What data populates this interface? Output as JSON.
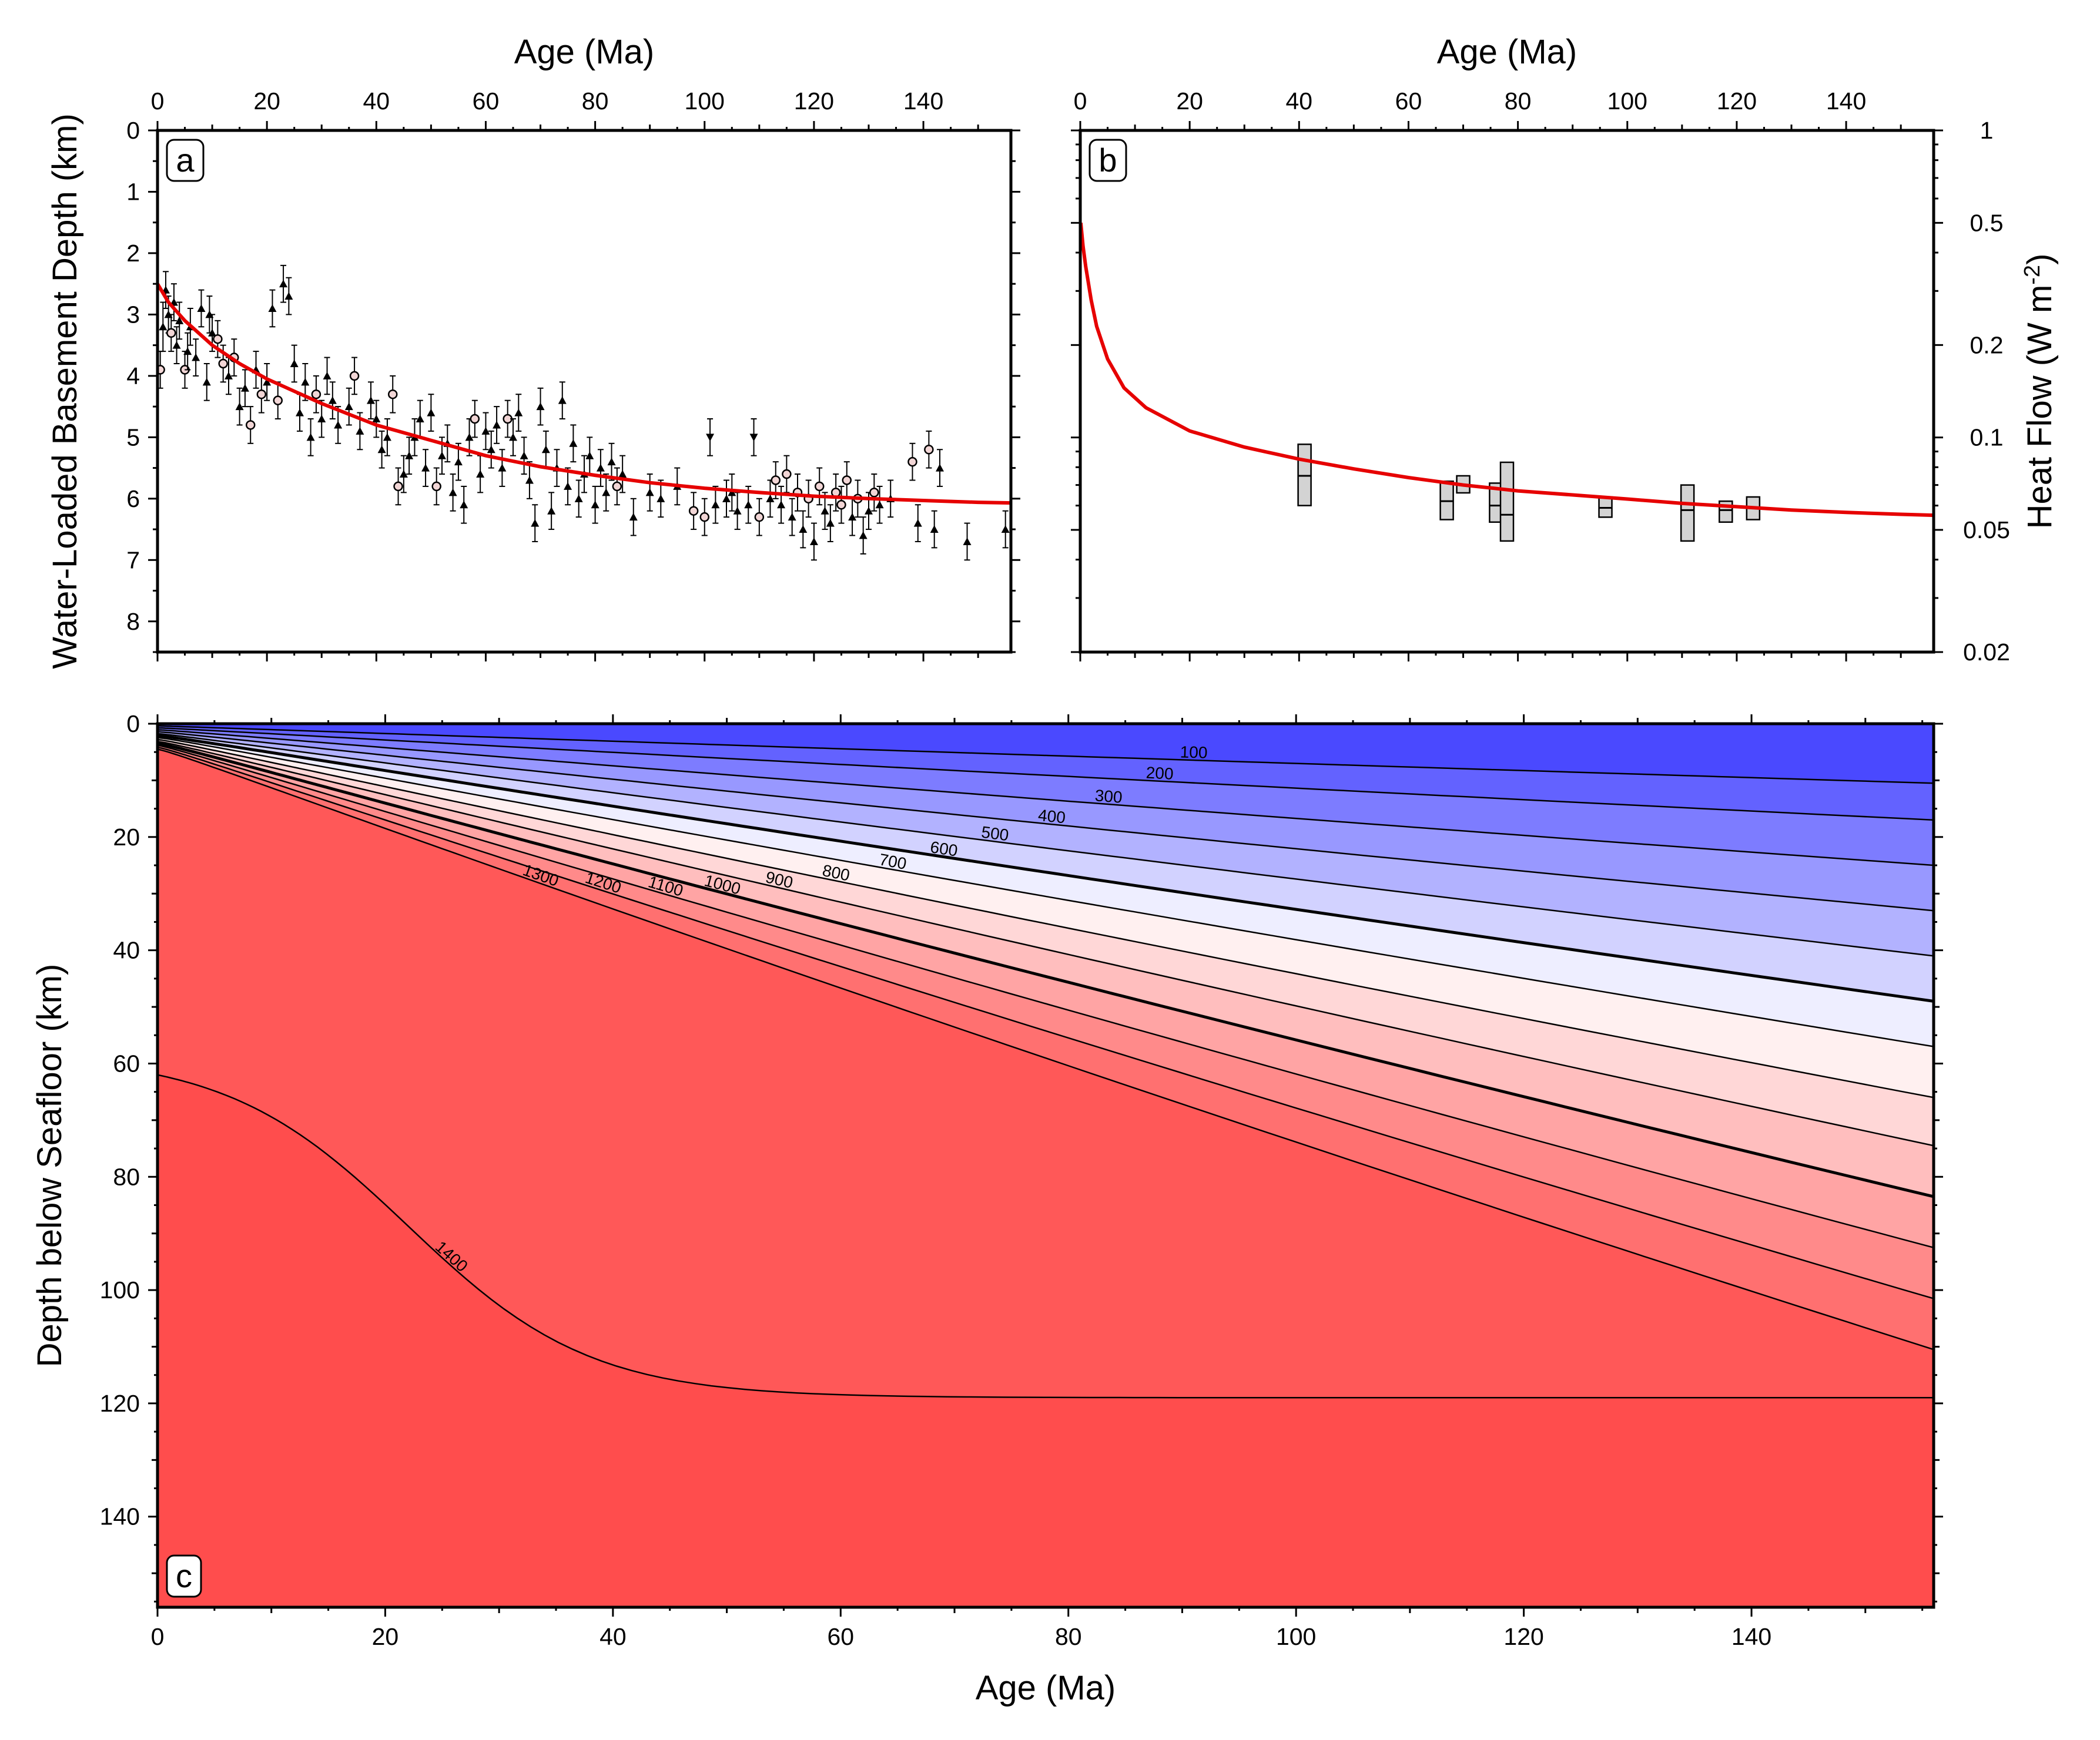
{
  "chart_data": [
    {
      "panel": "a",
      "type": "scatter",
      "panel_label": "a",
      "xlabel": "Age (Ma)",
      "ylabel": "Water-Loaded Basement Depth (km)",
      "xlim": [
        0,
        156
      ],
      "ylim": [
        0,
        8.5
      ],
      "y_inverted": true,
      "x_axis_side": "top",
      "x_ticks": [
        0,
        20,
        40,
        60,
        80,
        100,
        120,
        140
      ],
      "y_ticks": [
        0,
        1,
        2,
        3,
        4,
        5,
        6,
        7,
        8
      ],
      "grid": false,
      "model_curve": {
        "color": "#e60000",
        "x": [
          0,
          2,
          5,
          10,
          15,
          20,
          30,
          40,
          50,
          60,
          70,
          80,
          90,
          100,
          110,
          120,
          130,
          140,
          150,
          156
        ],
        "y": [
          2.5,
          2.8,
          3.1,
          3.5,
          3.8,
          4.05,
          4.45,
          4.8,
          5.05,
          5.3,
          5.48,
          5.62,
          5.74,
          5.83,
          5.9,
          5.96,
          6.0,
          6.03,
          6.06,
          6.07
        ]
      },
      "points": [
        {
          "x": 0.5,
          "y": 3.9,
          "e": 0.3,
          "m": "o"
        },
        {
          "x": 1,
          "y": 3.2,
          "e": 0.4,
          "m": "t"
        },
        {
          "x": 1.5,
          "y": 2.6,
          "e": 0.3,
          "m": "t"
        },
        {
          "x": 2,
          "y": 3.0,
          "e": 0.3,
          "m": "t"
        },
        {
          "x": 2.5,
          "y": 3.3,
          "e": 0.3,
          "m": "o"
        },
        {
          "x": 3,
          "y": 2.8,
          "e": 0.3,
          "m": "t"
        },
        {
          "x": 3.5,
          "y": 3.5,
          "e": 0.3,
          "m": "t"
        },
        {
          "x": 4,
          "y": 3.1,
          "e": 0.3,
          "m": "t"
        },
        {
          "x": 5,
          "y": 3.9,
          "e": 0.3,
          "m": "o"
        },
        {
          "x": 5.5,
          "y": 3.6,
          "e": 0.3,
          "m": "t"
        },
        {
          "x": 6,
          "y": 3.2,
          "e": 0.3,
          "m": "t"
        },
        {
          "x": 7,
          "y": 3.7,
          "e": 0.3,
          "m": "t"
        },
        {
          "x": 8,
          "y": 2.9,
          "e": 0.3,
          "m": "t"
        },
        {
          "x": 9,
          "y": 4.1,
          "e": 0.3,
          "m": "t"
        },
        {
          "x": 9.5,
          "y": 3.0,
          "e": 0.3,
          "m": "t"
        },
        {
          "x": 10,
          "y": 3.3,
          "e": 0.3,
          "m": "t"
        },
        {
          "x": 11,
          "y": 3.4,
          "e": 0.3,
          "m": "o"
        },
        {
          "x": 12,
          "y": 3.8,
          "e": 0.3,
          "m": "o"
        },
        {
          "x": 13,
          "y": 4.0,
          "e": 0.3,
          "m": "t"
        },
        {
          "x": 14,
          "y": 3.7,
          "e": 0.3,
          "m": "o"
        },
        {
          "x": 15,
          "y": 4.5,
          "e": 0.3,
          "m": "t"
        },
        {
          "x": 16,
          "y": 4.2,
          "e": 0.3,
          "m": "t"
        },
        {
          "x": 17,
          "y": 4.8,
          "e": 0.3,
          "m": "o"
        },
        {
          "x": 18,
          "y": 3.9,
          "e": 0.3,
          "m": "t"
        },
        {
          "x": 19,
          "y": 4.3,
          "e": 0.3,
          "m": "o"
        },
        {
          "x": 20,
          "y": 4.1,
          "e": 0.3,
          "m": "t"
        },
        {
          "x": 21,
          "y": 2.9,
          "e": 0.3,
          "m": "t"
        },
        {
          "x": 22,
          "y": 4.4,
          "e": 0.3,
          "m": "o"
        },
        {
          "x": 23,
          "y": 2.5,
          "e": 0.3,
          "m": "t"
        },
        {
          "x": 24,
          "y": 2.7,
          "e": 0.3,
          "m": "t"
        },
        {
          "x": 25,
          "y": 3.8,
          "e": 0.3,
          "m": "t"
        },
        {
          "x": 26,
          "y": 4.6,
          "e": 0.3,
          "m": "t"
        },
        {
          "x": 27,
          "y": 4.1,
          "e": 0.3,
          "m": "t"
        },
        {
          "x": 28,
          "y": 5.0,
          "e": 0.3,
          "m": "t"
        },
        {
          "x": 29,
          "y": 4.3,
          "e": 0.3,
          "m": "o"
        },
        {
          "x": 30,
          "y": 4.7,
          "e": 0.3,
          "m": "t"
        },
        {
          "x": 31,
          "y": 4.0,
          "e": 0.3,
          "m": "t"
        },
        {
          "x": 32,
          "y": 4.4,
          "e": 0.3,
          "m": "t"
        },
        {
          "x": 33,
          "y": 4.8,
          "e": 0.3,
          "m": "t"
        },
        {
          "x": 35,
          "y": 4.5,
          "e": 0.3,
          "m": "t"
        },
        {
          "x": 36,
          "y": 4.0,
          "e": 0.3,
          "m": "o"
        },
        {
          "x": 37,
          "y": 4.9,
          "e": 0.3,
          "m": "t"
        },
        {
          "x": 39,
          "y": 4.4,
          "e": 0.3,
          "m": "t"
        },
        {
          "x": 40,
          "y": 4.7,
          "e": 0.3,
          "m": "t"
        },
        {
          "x": 41,
          "y": 5.2,
          "e": 0.3,
          "m": "t"
        },
        {
          "x": 42,
          "y": 5.0,
          "e": 0.3,
          "m": "t"
        },
        {
          "x": 43,
          "y": 4.3,
          "e": 0.3,
          "m": "o"
        },
        {
          "x": 44,
          "y": 5.8,
          "e": 0.3,
          "m": "o"
        },
        {
          "x": 45,
          "y": 5.6,
          "e": 0.3,
          "m": "t"
        },
        {
          "x": 46,
          "y": 5.3,
          "e": 0.3,
          "m": "t"
        },
        {
          "x": 47,
          "y": 5.0,
          "e": 0.3,
          "m": "t"
        },
        {
          "x": 48,
          "y": 4.7,
          "e": 0.3,
          "m": "t"
        },
        {
          "x": 49,
          "y": 5.5,
          "e": 0.3,
          "m": "t"
        },
        {
          "x": 50,
          "y": 4.6,
          "e": 0.3,
          "m": "t"
        },
        {
          "x": 51,
          "y": 5.8,
          "e": 0.3,
          "m": "o"
        },
        {
          "x": 52,
          "y": 5.3,
          "e": 0.3,
          "m": "t"
        },
        {
          "x": 53,
          "y": 5.1,
          "e": 0.3,
          "m": "t"
        },
        {
          "x": 54,
          "y": 5.9,
          "e": 0.3,
          "m": "t"
        },
        {
          "x": 55,
          "y": 5.4,
          "e": 0.3,
          "m": "t"
        },
        {
          "x": 56,
          "y": 6.1,
          "e": 0.3,
          "m": "t"
        },
        {
          "x": 57,
          "y": 5.0,
          "e": 0.3,
          "m": "t"
        },
        {
          "x": 58,
          "y": 4.7,
          "e": 0.3,
          "m": "o"
        },
        {
          "x": 59,
          "y": 5.6,
          "e": 0.3,
          "m": "t"
        },
        {
          "x": 60,
          "y": 4.9,
          "e": 0.3,
          "m": "t"
        },
        {
          "x": 61,
          "y": 5.2,
          "e": 0.3,
          "m": "t"
        },
        {
          "x": 62,
          "y": 4.8,
          "e": 0.3,
          "m": "t"
        },
        {
          "x": 63,
          "y": 5.5,
          "e": 0.3,
          "m": "t"
        },
        {
          "x": 64,
          "y": 4.7,
          "e": 0.3,
          "m": "o"
        },
        {
          "x": 65,
          "y": 5.0,
          "e": 0.3,
          "m": "t"
        },
        {
          "x": 66,
          "y": 4.6,
          "e": 0.3,
          "m": "t"
        },
        {
          "x": 67,
          "y": 5.3,
          "e": 0.3,
          "m": "t"
        },
        {
          "x": 68,
          "y": 5.7,
          "e": 0.3,
          "m": "t"
        },
        {
          "x": 69,
          "y": 6.4,
          "e": 0.3,
          "m": "t"
        },
        {
          "x": 70,
          "y": 4.5,
          "e": 0.3,
          "m": "t"
        },
        {
          "x": 71,
          "y": 5.2,
          "e": 0.3,
          "m": "t"
        },
        {
          "x": 72,
          "y": 6.2,
          "e": 0.3,
          "m": "t"
        },
        {
          "x": 73,
          "y": 5.5,
          "e": 0.3,
          "m": "t"
        },
        {
          "x": 74,
          "y": 4.4,
          "e": 0.3,
          "m": "t"
        },
        {
          "x": 75,
          "y": 5.8,
          "e": 0.3,
          "m": "t"
        },
        {
          "x": 76,
          "y": 5.1,
          "e": 0.3,
          "m": "t"
        },
        {
          "x": 77,
          "y": 6.0,
          "e": 0.3,
          "m": "t"
        },
        {
          "x": 78,
          "y": 5.6,
          "e": 0.3,
          "m": "t"
        },
        {
          "x": 79,
          "y": 5.3,
          "e": 0.3,
          "m": "t"
        },
        {
          "x": 80,
          "y": 6.1,
          "e": 0.3,
          "m": "t"
        },
        {
          "x": 81,
          "y": 5.5,
          "e": 0.3,
          "m": "t"
        },
        {
          "x": 82,
          "y": 5.9,
          "e": 0.3,
          "m": "t"
        },
        {
          "x": 83,
          "y": 5.4,
          "e": 0.3,
          "m": "t"
        },
        {
          "x": 84,
          "y": 5.8,
          "e": 0.3,
          "m": "o"
        },
        {
          "x": 85,
          "y": 5.6,
          "e": 0.3,
          "m": "t"
        },
        {
          "x": 87,
          "y": 6.3,
          "e": 0.3,
          "m": "t"
        },
        {
          "x": 90,
          "y": 5.9,
          "e": 0.3,
          "m": "t"
        },
        {
          "x": 92,
          "y": 6.0,
          "e": 0.3,
          "m": "t"
        },
        {
          "x": 95,
          "y": 5.8,
          "e": 0.3,
          "m": "t"
        },
        {
          "x": 98,
          "y": 6.2,
          "e": 0.3,
          "m": "o"
        },
        {
          "x": 100,
          "y": 6.3,
          "e": 0.3,
          "m": "o"
        },
        {
          "x": 101,
          "y": 5.0,
          "e": 0.3,
          "m": "v"
        },
        {
          "x": 102,
          "y": 6.1,
          "e": 0.3,
          "m": "t"
        },
        {
          "x": 104,
          "y": 6.0,
          "e": 0.3,
          "m": "t"
        },
        {
          "x": 105,
          "y": 5.9,
          "e": 0.3,
          "m": "t"
        },
        {
          "x": 106,
          "y": 6.2,
          "e": 0.3,
          "m": "t"
        },
        {
          "x": 108,
          "y": 6.1,
          "e": 0.3,
          "m": "t"
        },
        {
          "x": 109,
          "y": 5.0,
          "e": 0.3,
          "m": "v"
        },
        {
          "x": 110,
          "y": 6.3,
          "e": 0.3,
          "m": "o"
        },
        {
          "x": 112,
          "y": 6.0,
          "e": 0.3,
          "m": "t"
        },
        {
          "x": 113,
          "y": 5.7,
          "e": 0.3,
          "m": "o"
        },
        {
          "x": 114,
          "y": 6.1,
          "e": 0.3,
          "m": "t"
        },
        {
          "x": 115,
          "y": 5.6,
          "e": 0.3,
          "m": "o"
        },
        {
          "x": 116,
          "y": 6.3,
          "e": 0.3,
          "m": "t"
        },
        {
          "x": 117,
          "y": 5.9,
          "e": 0.3,
          "m": "o"
        },
        {
          "x": 118,
          "y": 6.5,
          "e": 0.3,
          "m": "t"
        },
        {
          "x": 119,
          "y": 6.0,
          "e": 0.3,
          "m": "o"
        },
        {
          "x": 120,
          "y": 6.7,
          "e": 0.3,
          "m": "t"
        },
        {
          "x": 121,
          "y": 5.8,
          "e": 0.3,
          "m": "o"
        },
        {
          "x": 122,
          "y": 6.2,
          "e": 0.3,
          "m": "t"
        },
        {
          "x": 123,
          "y": 6.4,
          "e": 0.3,
          "m": "t"
        },
        {
          "x": 124,
          "y": 5.9,
          "e": 0.3,
          "m": "o"
        },
        {
          "x": 125,
          "y": 6.1,
          "e": 0.3,
          "m": "o"
        },
        {
          "x": 126,
          "y": 5.7,
          "e": 0.3,
          "m": "o"
        },
        {
          "x": 127,
          "y": 6.3,
          "e": 0.3,
          "m": "t"
        },
        {
          "x": 128,
          "y": 6.0,
          "e": 0.3,
          "m": "o"
        },
        {
          "x": 129,
          "y": 6.6,
          "e": 0.3,
          "m": "t"
        },
        {
          "x": 130,
          "y": 6.2,
          "e": 0.3,
          "m": "t"
        },
        {
          "x": 131,
          "y": 5.9,
          "e": 0.3,
          "m": "o"
        },
        {
          "x": 132,
          "y": 6.1,
          "e": 0.3,
          "m": "t"
        },
        {
          "x": 134,
          "y": 6.0,
          "e": 0.3,
          "m": "t"
        },
        {
          "x": 138,
          "y": 5.4,
          "e": 0.3,
          "m": "o"
        },
        {
          "x": 139,
          "y": 6.4,
          "e": 0.3,
          "m": "t"
        },
        {
          "x": 141,
          "y": 5.2,
          "e": 0.3,
          "m": "o"
        },
        {
          "x": 142,
          "y": 6.5,
          "e": 0.3,
          "m": "t"
        },
        {
          "x": 143,
          "y": 5.5,
          "e": 0.3,
          "m": "t"
        },
        {
          "x": 148,
          "y": 6.7,
          "e": 0.3,
          "m": "t"
        },
        {
          "x": 155,
          "y": 6.5,
          "e": 0.3,
          "m": "t"
        }
      ]
    },
    {
      "panel": "b",
      "type": "line",
      "panel_label": "b",
      "xlabel": "Age (Ma)",
      "ylabel": "Heat Flow (W m",
      "ylabel_sup": "-2",
      "ylabel_close": ")",
      "xlim": [
        0,
        156
      ],
      "ylim": [
        0.02,
        1
      ],
      "y_scale": "log",
      "x_axis_side": "top",
      "y_axis_side": "right",
      "x_ticks": [
        0,
        20,
        40,
        60,
        80,
        100,
        120,
        140
      ],
      "y_ticks": [
        0.02,
        0.05,
        0.1,
        0.2,
        0.5,
        1
      ],
      "y_tick_labels": [
        "0.02",
        "0.05",
        "0.1",
        "0.2",
        "0.5",
        "1"
      ],
      "grid": false,
      "model_curve": {
        "color": "#e60000",
        "x": [
          0.1,
          0.5,
          1,
          2,
          3,
          5,
          8,
          12,
          20,
          30,
          40,
          50,
          60,
          70,
          80,
          90,
          100,
          110,
          120,
          130,
          140,
          150,
          156
        ],
        "y": [
          0.5,
          0.42,
          0.36,
          0.28,
          0.23,
          0.18,
          0.145,
          0.125,
          0.105,
          0.093,
          0.085,
          0.079,
          0.074,
          0.07,
          0.067,
          0.065,
          0.063,
          0.061,
          0.0595,
          0.058,
          0.057,
          0.0562,
          0.0558
        ]
      },
      "boxes": [
        {
          "x": 41,
          "low": 0.06,
          "high": 0.095,
          "mid": 0.075
        },
        {
          "x": 67,
          "low": 0.054,
          "high": 0.072,
          "mid": 0.062
        },
        {
          "x": 70,
          "low": 0.066,
          "high": 0.075,
          "mid": 0.07
        },
        {
          "x": 76,
          "low": 0.053,
          "high": 0.071,
          "mid": 0.06
        },
        {
          "x": 78,
          "low": 0.046,
          "high": 0.083,
          "mid": 0.056
        },
        {
          "x": 96,
          "low": 0.055,
          "high": 0.064,
          "mid": 0.059
        },
        {
          "x": 111,
          "low": 0.046,
          "high": 0.07,
          "mid": 0.058
        },
        {
          "x": 118,
          "low": 0.053,
          "high": 0.062,
          "mid": 0.058
        },
        {
          "x": 123,
          "low": 0.054,
          "high": 0.064,
          "mid": 0.059
        }
      ]
    },
    {
      "panel": "c",
      "type": "contour",
      "panel_label": "c",
      "xlabel": "Age (Ma)",
      "ylabel": "Depth below Seafloor (km)",
      "xlim": [
        0,
        156
      ],
      "ylim": [
        0,
        156
      ],
      "y_inverted": true,
      "x_ticks": [
        0,
        20,
        40,
        60,
        80,
        100,
        120,
        140
      ],
      "y_ticks": [
        0,
        20,
        40,
        60,
        80,
        100,
        120,
        140
      ],
      "grid": false,
      "levels": [
        100,
        200,
        300,
        400,
        500,
        600,
        700,
        800,
        900,
        1000,
        1100,
        1200,
        1300,
        1400
      ],
      "labeled_levels": [
        "100",
        "200",
        "300",
        "400",
        "500",
        "600",
        "700",
        "800",
        "900",
        "1000",
        "1100",
        "1200",
        "1300",
        "1400"
      ],
      "bold_levels": [
        600,
        1000
      ],
      "level_depths_at_max_age_km": [
        10.5,
        17,
        25,
        33,
        41,
        49,
        57,
        66,
        74.5,
        83.5,
        92.5,
        101.5,
        110.5,
        119
      ],
      "label_ages_ma": [
        91,
        88,
        83.5,
        78.5,
        73.5,
        69,
        64.5,
        59.5,
        54.5,
        49.5,
        44.5,
        39,
        33.5,
        25.5
      ],
      "fill_colors": [
        "#4a49ff",
        "#6362ff",
        "#7d7cff",
        "#9898ff",
        "#b2b2ff",
        "#d2d2ff",
        "#eeeeff",
        "#fff0f0",
        "#ffd7d7",
        "#ffbebe",
        "#ffa4a4",
        "#ff8a8a",
        "#ff7070",
        "#ff5858",
        "#ff4d4d"
      ],
      "colors": {
        "cold": "#4a49ff",
        "hot": "#ff4d4d"
      }
    }
  ]
}
